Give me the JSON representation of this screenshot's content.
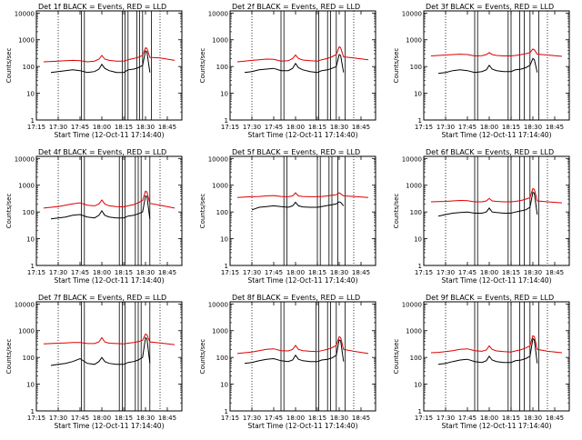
{
  "colors": {
    "events": "#000000",
    "lld": "#dd0000",
    "background": "#ffffff",
    "axis": "#000000"
  },
  "chart_data": [
    {
      "type": "line",
      "title": "Det 1f BLACK = Events, RED = LLD",
      "xlabel": "Start Time (12-Oct-11 17:14:40)",
      "ylabel": "Counts/sec",
      "yscale": "log",
      "ylim": [
        1,
        12000
      ],
      "xlim": [
        "17:15",
        "18:55"
      ],
      "x_ticks": [
        "17:15",
        "17:30",
        "17:45",
        "18:00",
        "18:15",
        "18:30",
        "18:45"
      ],
      "y_ticks": [
        "1",
        "10",
        "100",
        "1000",
        "10000"
      ],
      "x": [
        "17:20",
        "17:25",
        "17:30",
        "17:35",
        "17:40",
        "17:45",
        "17:50",
        "17:55",
        "17:58",
        "18:00",
        "18:02",
        "18:05",
        "18:10",
        "18:15",
        "18:18",
        "18:22",
        "18:25",
        "18:28",
        "18:30",
        "18:31",
        "18:33",
        "18:40",
        "18:50"
      ],
      "series": [
        {
          "name": "BLACK = Events",
          "values": [
            null,
            60,
            65,
            70,
            75,
            70,
            60,
            65,
            80,
            120,
            85,
            70,
            60,
            60,
            75,
            80,
            90,
            110,
            380,
            350,
            60,
            null,
            null
          ]
        },
        {
          "name": "RED = LLD",
          "values": [
            150,
            155,
            160,
            165,
            170,
            165,
            150,
            160,
            190,
            260,
            190,
            170,
            160,
            160,
            180,
            200,
            220,
            260,
            500,
            480,
            220,
            210,
            170
          ]
        }
      ],
      "verticals_solid": [
        "17:46",
        "17:48",
        "18:14",
        "18:16",
        "18:18",
        "18:24",
        "18:26",
        "18:28",
        "18:34"
      ],
      "verticals_dotted": [
        "17:30",
        "18:40"
      ]
    },
    {
      "type": "line",
      "title": "Det 2f BLACK = Events, RED = LLD",
      "xlabel": "Start Time (12-Oct-11 17:14:40)",
      "ylabel": "Counts/sec",
      "yscale": "log",
      "ylim": [
        1,
        12000
      ],
      "xlim": [
        "17:15",
        "18:55"
      ],
      "x_ticks": [
        "17:15",
        "17:30",
        "17:45",
        "18:00",
        "18:15",
        "18:30",
        "18:45"
      ],
      "y_ticks": [
        "1",
        "10",
        "100",
        "1000",
        "10000"
      ],
      "x": [
        "17:20",
        "17:25",
        "17:30",
        "17:35",
        "17:40",
        "17:45",
        "17:50",
        "17:55",
        "17:58",
        "18:00",
        "18:02",
        "18:05",
        "18:10",
        "18:15",
        "18:18",
        "18:22",
        "18:25",
        "18:28",
        "18:30",
        "18:31",
        "18:33",
        "18:40",
        "18:50"
      ],
      "series": [
        {
          "name": "BLACK = Events",
          "values": [
            null,
            60,
            65,
            75,
            80,
            85,
            70,
            70,
            85,
            130,
            90,
            75,
            65,
            60,
            70,
            75,
            85,
            100,
            280,
            260,
            60,
            null,
            null
          ]
        },
        {
          "name": "RED = LLD",
          "values": [
            150,
            160,
            170,
            180,
            190,
            185,
            160,
            165,
            200,
            270,
            200,
            175,
            165,
            160,
            180,
            200,
            230,
            280,
            550,
            500,
            230,
            210,
            180
          ]
        }
      ],
      "verticals_solid": [
        "17:50",
        "17:52",
        "18:14",
        "18:16",
        "18:22",
        "18:24",
        "18:28",
        "18:34"
      ],
      "verticals_dotted": [
        "17:30",
        "18:40"
      ]
    },
    {
      "type": "line",
      "title": "Det 3f BLACK = Events, RED = LLD",
      "xlabel": "Start Time (12-Oct-11 17:14:40)",
      "ylabel": "Counts/sec",
      "yscale": "log",
      "ylim": [
        1,
        12000
      ],
      "xlim": [
        "17:15",
        "18:55"
      ],
      "x_ticks": [
        "17:15",
        "17:30",
        "17:45",
        "18:00",
        "18:15",
        "18:30",
        "18:45"
      ],
      "y_ticks": [
        "1",
        "10",
        "100",
        "1000",
        "10000"
      ],
      "x": [
        "17:20",
        "17:25",
        "17:30",
        "17:35",
        "17:40",
        "17:45",
        "17:50",
        "17:55",
        "17:58",
        "18:00",
        "18:02",
        "18:05",
        "18:10",
        "18:15",
        "18:18",
        "18:22",
        "18:25",
        "18:28",
        "18:30",
        "18:31",
        "18:33",
        "18:40",
        "18:50"
      ],
      "series": [
        {
          "name": "BLACK = Events",
          "values": [
            null,
            55,
            60,
            70,
            75,
            70,
            60,
            65,
            75,
            110,
            80,
            70,
            65,
            65,
            75,
            80,
            90,
            110,
            200,
            180,
            60,
            null,
            null
          ]
        },
        {
          "name": "RED = LLD",
          "values": [
            250,
            260,
            270,
            280,
            290,
            280,
            250,
            255,
            280,
            330,
            280,
            260,
            250,
            250,
            260,
            280,
            300,
            330,
            450,
            420,
            290,
            270,
            240
          ]
        }
      ],
      "verticals_solid": [
        "17:50",
        "17:52",
        "18:13",
        "18:15",
        "18:21",
        "18:24",
        "18:28",
        "18:34"
      ],
      "verticals_dotted": [
        "17:30",
        "18:40"
      ]
    },
    {
      "type": "line",
      "title": "Det 4f BLACK = Events, RED = LLD",
      "xlabel": "Start Time (12-Oct-11 17:14:40)",
      "ylabel": "Counts/sec",
      "yscale": "log",
      "ylim": [
        1,
        12000
      ],
      "xlim": [
        "17:15",
        "18:55"
      ],
      "x_ticks": [
        "17:15",
        "17:30",
        "17:45",
        "18:00",
        "18:15",
        "18:30",
        "18:45"
      ],
      "y_ticks": [
        "1",
        "10",
        "100",
        "1000",
        "10000"
      ],
      "x": [
        "17:20",
        "17:25",
        "17:30",
        "17:35",
        "17:40",
        "17:45",
        "17:50",
        "17:55",
        "17:58",
        "18:00",
        "18:02",
        "18:05",
        "18:10",
        "18:15",
        "18:18",
        "18:22",
        "18:25",
        "18:28",
        "18:30",
        "18:31",
        "18:33",
        "18:40",
        "18:50"
      ],
      "series": [
        {
          "name": "BLACK = Events",
          "values": [
            null,
            55,
            60,
            65,
            75,
            80,
            65,
            60,
            75,
            110,
            75,
            65,
            60,
            60,
            70,
            75,
            85,
            100,
            400,
            380,
            55,
            null,
            null
          ]
        },
        {
          "name": "RED = LLD",
          "values": [
            140,
            150,
            160,
            180,
            200,
            220,
            180,
            170,
            200,
            280,
            200,
            170,
            160,
            155,
            170,
            190,
            220,
            270,
            600,
            560,
            210,
            180,
            140
          ]
        }
      ],
      "verticals_solid": [
        "17:46",
        "17:48",
        "18:12",
        "18:14",
        "18:16",
        "18:23",
        "18:25",
        "18:27",
        "18:33"
      ],
      "verticals_dotted": [
        "17:30",
        "18:40"
      ]
    },
    {
      "type": "line",
      "title": "Det 5f BLACK = Events, RED = LLD",
      "xlabel": "Start Time (12-Oct-11 17:14:40)",
      "ylabel": "Counts/sec",
      "yscale": "log",
      "ylim": [
        1,
        12000
      ],
      "xlim": [
        "17:15",
        "18:55"
      ],
      "x_ticks": [
        "17:15",
        "17:30",
        "17:45",
        "18:00",
        "18:15",
        "18:30",
        "18:45"
      ],
      "y_ticks": [
        "1",
        "10",
        "100",
        "1000",
        "10000"
      ],
      "x": [
        "17:20",
        "17:25",
        "17:30",
        "17:35",
        "17:40",
        "17:45",
        "17:50",
        "17:55",
        "17:58",
        "18:00",
        "18:02",
        "18:05",
        "18:10",
        "18:15",
        "18:18",
        "18:22",
        "18:25",
        "18:28",
        "18:30",
        "18:31",
        "18:33",
        "18:40",
        "18:50"
      ],
      "series": [
        {
          "name": "BLACK = Events",
          "values": [
            null,
            null,
            120,
            150,
            160,
            170,
            160,
            150,
            170,
            230,
            170,
            155,
            150,
            150,
            160,
            175,
            185,
            200,
            240,
            230,
            170,
            null,
            null
          ]
        },
        {
          "name": "RED = LLD",
          "values": [
            350,
            360,
            370,
            380,
            400,
            410,
            380,
            370,
            400,
            520,
            400,
            380,
            370,
            370,
            380,
            400,
            420,
            440,
            520,
            480,
            400,
            380,
            350
          ]
        }
      ],
      "verticals_solid": [
        "17:52",
        "17:54",
        "18:15",
        "18:17",
        "18:23",
        "18:25",
        "18:29",
        "18:34"
      ],
      "verticals_dotted": [
        "17:30",
        "18:40"
      ]
    },
    {
      "type": "line",
      "title": "Det 6f BLACK = Events, RED = LLD",
      "xlabel": "Start Time (12-Oct-11 17:14:40)",
      "ylabel": "Counts/sec",
      "yscale": "log",
      "ylim": [
        1,
        12000
      ],
      "xlim": [
        "17:15",
        "18:55"
      ],
      "x_ticks": [
        "17:15",
        "17:30",
        "17:45",
        "18:00",
        "18:15",
        "18:30",
        "18:45"
      ],
      "y_ticks": [
        "1",
        "10",
        "100",
        "1000",
        "10000"
      ],
      "x": [
        "17:20",
        "17:25",
        "17:30",
        "17:35",
        "17:40",
        "17:45",
        "17:50",
        "17:55",
        "17:58",
        "18:00",
        "18:02",
        "18:05",
        "18:10",
        "18:15",
        "18:18",
        "18:22",
        "18:25",
        "18:28",
        "18:30",
        "18:31",
        "18:33",
        "18:40",
        "18:50"
      ],
      "series": [
        {
          "name": "BLACK = Events",
          "values": [
            null,
            70,
            80,
            90,
            95,
            100,
            90,
            90,
            100,
            140,
            100,
            95,
            90,
            90,
            100,
            110,
            120,
            150,
            550,
            500,
            80,
            null,
            null
          ]
        },
        {
          "name": "RED = LLD",
          "values": [
            240,
            245,
            250,
            260,
            270,
            265,
            240,
            240,
            260,
            320,
            260,
            250,
            240,
            240,
            250,
            270,
            300,
            340,
            750,
            700,
            260,
            240,
            220
          ]
        }
      ],
      "verticals_solid": [
        "17:50",
        "17:52",
        "18:13",
        "18:15",
        "18:21",
        "18:24",
        "18:28",
        "18:34"
      ],
      "verticals_dotted": [
        "17:30",
        "18:40"
      ]
    },
    {
      "type": "line",
      "title": "Det 7f BLACK = Events, RED = LLD",
      "xlabel": "Start Time (12-Oct-11 17:14:40)",
      "ylabel": "Counts/sec",
      "yscale": "log",
      "ylim": [
        1,
        12000
      ],
      "xlim": [
        "17:15",
        "18:55"
      ],
      "x_ticks": [
        "17:15",
        "17:30",
        "17:45",
        "18:00",
        "18:15",
        "18:30",
        "18:45"
      ],
      "y_ticks": [
        "1",
        "10",
        "100",
        "1000",
        "10000"
      ],
      "x": [
        "17:20",
        "17:25",
        "17:30",
        "17:35",
        "17:40",
        "17:45",
        "17:50",
        "17:55",
        "17:58",
        "18:00",
        "18:02",
        "18:05",
        "18:10",
        "18:15",
        "18:18",
        "18:22",
        "18:25",
        "18:28",
        "18:30",
        "18:31",
        "18:33",
        "18:40",
        "18:50"
      ],
      "series": [
        {
          "name": "BLACK = Events",
          "values": [
            null,
            50,
            55,
            60,
            70,
            90,
            60,
            55,
            70,
            100,
            70,
            60,
            55,
            55,
            65,
            70,
            80,
            100,
            550,
            500,
            60,
            null,
            null
          ]
        },
        {
          "name": "RED = LLD",
          "values": [
            320,
            330,
            340,
            350,
            360,
            360,
            330,
            330,
            380,
            550,
            380,
            340,
            330,
            320,
            340,
            360,
            390,
            430,
            750,
            700,
            380,
            350,
            300
          ]
        }
      ],
      "verticals_solid": [
        "17:46",
        "17:48",
        "18:12",
        "18:14",
        "18:16",
        "18:23",
        "18:25",
        "18:27",
        "18:33"
      ],
      "verticals_dotted": [
        "17:30",
        "18:40"
      ]
    },
    {
      "type": "line",
      "title": "Det 8f BLACK = Events, RED = LLD",
      "xlabel": "Start Time (12-Oct-11 17:14:40)",
      "ylabel": "Counts/sec",
      "yscale": "log",
      "ylim": [
        1,
        12000
      ],
      "xlim": [
        "17:15",
        "18:55"
      ],
      "x_ticks": [
        "17:15",
        "17:30",
        "17:45",
        "18:00",
        "18:15",
        "18:30",
        "18:45"
      ],
      "y_ticks": [
        "1",
        "10",
        "100",
        "1000",
        "10000"
      ],
      "x": [
        "17:20",
        "17:25",
        "17:30",
        "17:35",
        "17:40",
        "17:45",
        "17:50",
        "17:55",
        "17:58",
        "18:00",
        "18:02",
        "18:05",
        "18:10",
        "18:15",
        "18:18",
        "18:22",
        "18:25",
        "18:28",
        "18:30",
        "18:31",
        "18:33",
        "18:40",
        "18:50"
      ],
      "series": [
        {
          "name": "BLACK = Events",
          "values": [
            null,
            60,
            65,
            75,
            85,
            90,
            75,
            70,
            80,
            120,
            85,
            75,
            70,
            70,
            80,
            85,
            95,
            120,
            450,
            420,
            70,
            null,
            null
          ]
        },
        {
          "name": "RED = LLD",
          "values": [
            140,
            150,
            160,
            180,
            200,
            210,
            180,
            175,
            200,
            280,
            200,
            180,
            170,
            165,
            180,
            200,
            230,
            280,
            600,
            550,
            200,
            170,
            140
          ]
        }
      ],
      "verticals_solid": [
        "17:50",
        "17:52",
        "18:14",
        "18:16",
        "18:22",
        "18:24",
        "18:28",
        "18:34"
      ],
      "verticals_dotted": [
        "17:30",
        "18:40"
      ]
    },
    {
      "type": "line",
      "title": "Det 9f BLACK = Events, RED = LLD",
      "xlabel": "Start Time (12-Oct-11 17:14:40)",
      "ylabel": "Counts/sec",
      "yscale": "log",
      "ylim": [
        1,
        12000
      ],
      "xlim": [
        "17:15",
        "18:55"
      ],
      "x_ticks": [
        "17:15",
        "17:30",
        "17:45",
        "18:00",
        "18:15",
        "18:30",
        "18:45"
      ],
      "y_ticks": [
        "1",
        "10",
        "100",
        "1000",
        "10000"
      ],
      "x": [
        "17:20",
        "17:25",
        "17:30",
        "17:35",
        "17:40",
        "17:45",
        "17:50",
        "17:55",
        "17:58",
        "18:00",
        "18:02",
        "18:05",
        "18:10",
        "18:15",
        "18:18",
        "18:22",
        "18:25",
        "18:28",
        "18:30",
        "18:31",
        "18:33",
        "18:40",
        "18:50"
      ],
      "series": [
        {
          "name": "BLACK = Events",
          "values": [
            null,
            55,
            60,
            70,
            80,
            85,
            70,
            65,
            75,
            110,
            80,
            70,
            65,
            65,
            75,
            80,
            90,
            110,
            500,
            450,
            60,
            null,
            null
          ]
        },
        {
          "name": "RED = LLD",
          "values": [
            150,
            155,
            165,
            180,
            200,
            210,
            180,
            170,
            190,
            270,
            200,
            175,
            165,
            160,
            175,
            195,
            225,
            270,
            650,
            600,
            200,
            170,
            150
          ]
        }
      ],
      "verticals_solid": [
        "17:50",
        "17:52",
        "18:13",
        "18:15",
        "18:21",
        "18:24",
        "18:28",
        "18:34"
      ],
      "verticals_dotted": [
        "17:30",
        "18:40"
      ]
    }
  ]
}
